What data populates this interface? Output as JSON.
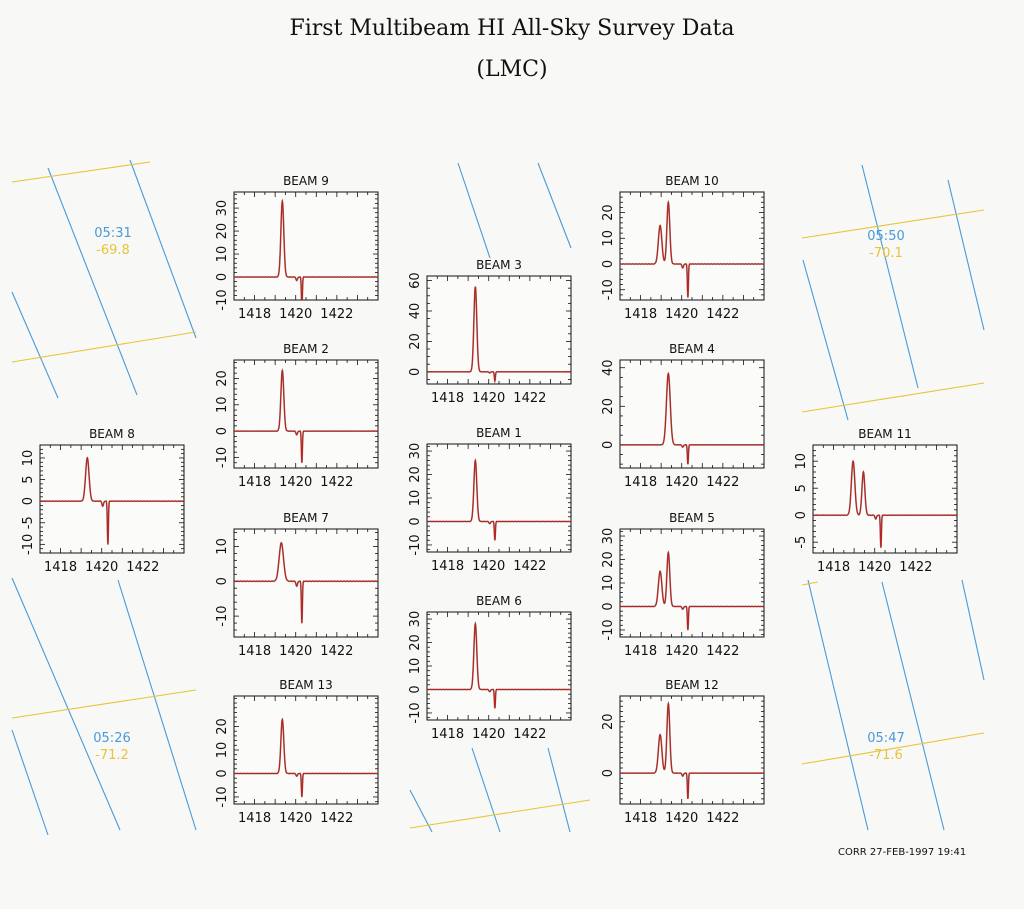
{
  "title": "First Multibeam HI All-Sky Survey Data",
  "subtitle": "(LMC)",
  "stamp": "CORR 27-FEB-1997 19:41",
  "colors": {
    "spectrum": "#c0201a",
    "spectrum_dark": "#222222",
    "grid_blue": "#4a9ad8",
    "grid_yellow": "#e6c43a"
  },
  "coordinate_labels": [
    {
      "id": "top-left",
      "ra": "05:31",
      "dec": "-69.8"
    },
    {
      "id": "top-right",
      "ra": "05:50",
      "dec": "-70.1"
    },
    {
      "id": "bottom-left",
      "ra": "05:26",
      "dec": "-71.2"
    },
    {
      "id": "bottom-right",
      "ra": "05:47",
      "dec": "-71.6"
    }
  ],
  "chart_data": [
    {
      "type": "line",
      "title": "BEAM 9",
      "xlim": [
        1417,
        1424
      ],
      "ylim": [
        -10,
        37
      ],
      "x_ticks": [
        1418,
        1420,
        1422
      ],
      "y_ticks": [
        -10,
        0,
        10,
        20,
        30
      ],
      "series": [
        {
          "peaks": [
            [
              1419.35,
              33,
              0.1
            ]
          ],
          "dip": [
            1420.3,
            -13
          ]
        }
      ]
    },
    {
      "type": "line",
      "title": "BEAM 10",
      "xlim": [
        1417,
        1424
      ],
      "ylim": [
        -14,
        28
      ],
      "x_ticks": [
        1418,
        1420,
        1422
      ],
      "y_ticks": [
        -10,
        0,
        10,
        20
      ],
      "series": [
        {
          "peaks": [
            [
              1418.95,
              15,
              0.12
            ],
            [
              1419.35,
              24,
              0.1
            ]
          ],
          "dip": [
            1420.3,
            -13
          ]
        }
      ]
    },
    {
      "type": "line",
      "title": "BEAM 3",
      "xlim": [
        1417,
        1424
      ],
      "ylim": [
        -8,
        63
      ],
      "x_ticks": [
        1418,
        1420,
        1422
      ],
      "y_ticks": [
        0,
        20,
        40,
        60
      ],
      "series": [
        {
          "peaks": [
            [
              1419.35,
              56,
              0.1
            ]
          ],
          "dip": [
            1420.3,
            -6
          ]
        }
      ]
    },
    {
      "type": "line",
      "title": "BEAM 2",
      "xlim": [
        1417,
        1424
      ],
      "ylim": [
        -14,
        27
      ],
      "x_ticks": [
        1418,
        1420,
        1422
      ],
      "y_ticks": [
        -10,
        0,
        10,
        20
      ],
      "series": [
        {
          "peaks": [
            [
              1419.35,
              23,
              0.1
            ]
          ],
          "dip": [
            1420.3,
            -12
          ]
        }
      ]
    },
    {
      "type": "line",
      "title": "BEAM 4",
      "xlim": [
        1417,
        1424
      ],
      "ylim": [
        -12,
        44
      ],
      "x_ticks": [
        1418,
        1420,
        1422
      ],
      "y_ticks": [
        0,
        20,
        40
      ],
      "series": [
        {
          "peaks": [
            [
              1419.35,
              37,
              0.13
            ]
          ],
          "dip": [
            1420.3,
            -10
          ]
        }
      ]
    },
    {
      "type": "line",
      "title": "BEAM 8",
      "xlim": [
        1417,
        1424
      ],
      "ylim": [
        -12,
        13
      ],
      "x_ticks": [
        1418,
        1420,
        1422
      ],
      "y_ticks": [
        -10,
        -5,
        0,
        5,
        10
      ],
      "series": [
        {
          "peaks": [
            [
              1419.3,
              10,
              0.12
            ]
          ],
          "dip": [
            1420.3,
            -10
          ]
        }
      ]
    },
    {
      "type": "line",
      "title": "BEAM 1",
      "xlim": [
        1417,
        1424
      ],
      "ylim": [
        -13,
        33
      ],
      "x_ticks": [
        1418,
        1420,
        1422
      ],
      "y_ticks": [
        -10,
        0,
        10,
        20,
        30
      ],
      "series": [
        {
          "peaks": [
            [
              1419.35,
              26,
              0.1
            ]
          ],
          "dip": [
            1420.3,
            -8
          ]
        }
      ]
    },
    {
      "type": "line",
      "title": "BEAM 11",
      "xlim": [
        1417,
        1424
      ],
      "ylim": [
        -7,
        13
      ],
      "x_ticks": [
        1418,
        1420,
        1422
      ],
      "y_ticks": [
        -5,
        0,
        5,
        10
      ],
      "series": [
        {
          "peaks": [
            [
              1418.95,
              10,
              0.12
            ],
            [
              1419.45,
              8,
              0.1
            ]
          ],
          "dip": [
            1420.3,
            -6
          ]
        }
      ]
    },
    {
      "type": "line",
      "title": "BEAM 7",
      "xlim": [
        1417,
        1424
      ],
      "ylim": [
        -16,
        15
      ],
      "x_ticks": [
        1418,
        1420,
        1422
      ],
      "y_ticks": [
        -10,
        0,
        10
      ],
      "series": [
        {
          "peaks": [
            [
              1419.3,
              11,
              0.15
            ]
          ],
          "dip": [
            1420.3,
            -12
          ]
        }
      ]
    },
    {
      "type": "line",
      "title": "BEAM 5",
      "xlim": [
        1417,
        1424
      ],
      "ylim": [
        -13,
        33
      ],
      "x_ticks": [
        1418,
        1420,
        1422
      ],
      "y_ticks": [
        -10,
        0,
        10,
        20,
        30
      ],
      "series": [
        {
          "peaks": [
            [
              1418.95,
              15,
              0.12
            ],
            [
              1419.35,
              23,
              0.1
            ]
          ],
          "dip": [
            1420.3,
            -10
          ]
        }
      ]
    },
    {
      "type": "line",
      "title": "BEAM 6",
      "xlim": [
        1417,
        1424
      ],
      "ylim": [
        -13,
        33
      ],
      "x_ticks": [
        1418,
        1420,
        1422
      ],
      "y_ticks": [
        -10,
        0,
        10,
        20,
        30
      ],
      "series": [
        {
          "peaks": [
            [
              1419.35,
              28,
              0.1
            ]
          ],
          "dip": [
            1420.3,
            -8
          ]
        }
      ]
    },
    {
      "type": "line",
      "title": "BEAM 13",
      "xlim": [
        1417,
        1424
      ],
      "ylim": [
        -13,
        33
      ],
      "x_ticks": [
        1418,
        1420,
        1422
      ],
      "y_ticks": [
        -10,
        0,
        10,
        20
      ],
      "series": [
        {
          "peaks": [
            [
              1419.35,
              23,
              0.1
            ]
          ],
          "dip": [
            1420.3,
            -10
          ]
        }
      ]
    },
    {
      "type": "line",
      "title": "BEAM 12",
      "xlim": [
        1417,
        1424
      ],
      "ylim": [
        -12,
        30
      ],
      "x_ticks": [
        1418,
        1420,
        1422
      ],
      "y_ticks": [
        0,
        20
      ],
      "series": [
        {
          "peaks": [
            [
              1418.95,
              15,
              0.12
            ],
            [
              1419.35,
              27,
              0.1
            ]
          ],
          "dip": [
            1420.3,
            -10
          ]
        }
      ]
    }
  ]
}
